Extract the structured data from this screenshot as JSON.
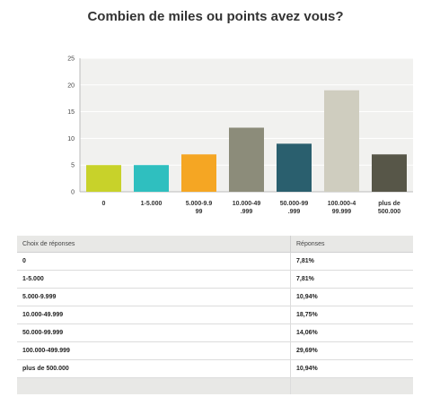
{
  "chart_data": {
    "type": "bar",
    "title": "Combien de miles ou points avez vous?",
    "xlabel": "",
    "ylabel": "",
    "ylim": [
      0,
      25
    ],
    "yticks": [
      0,
      5,
      10,
      15,
      20,
      25
    ],
    "grid": true,
    "categories": [
      "0",
      "1-5.000",
      "5.000-9.999",
      "10.000-49.999",
      "50.000-99.999",
      "100.000-499.999",
      "plus de 500.000"
    ],
    "category_lines": [
      [
        "0"
      ],
      [
        "1-5.000"
      ],
      [
        "5.000-9.9",
        "99"
      ],
      [
        "10.000-49",
        ".999"
      ],
      [
        "50.000-99",
        ".999"
      ],
      [
        "100.000-4",
        "99.999"
      ],
      [
        "plus de",
        "500.000"
      ]
    ],
    "values": [
      5,
      5,
      7,
      12,
      9,
      19,
      7
    ],
    "colors": [
      "#c8d22a",
      "#2fbfbf",
      "#f5a623",
      "#8c8c7a",
      "#2a5f6e",
      "#cfcdbf",
      "#575648"
    ]
  },
  "table": {
    "header_choice": "Choix de réponses",
    "header_responses": "Réponses",
    "rows": [
      {
        "label": "0",
        "pct": "7,81%"
      },
      {
        "label": "1-5.000",
        "pct": "7,81%"
      },
      {
        "label": "5.000-9.999",
        "pct": "10,94%"
      },
      {
        "label": "10.000-49.999",
        "pct": "18,75%"
      },
      {
        "label": "50.000-99.999",
        "pct": "14,06%"
      },
      {
        "label": "100.000-499.999",
        "pct": "29,69%"
      },
      {
        "label": "plus de 500.000",
        "pct": "10,94%"
      }
    ]
  }
}
